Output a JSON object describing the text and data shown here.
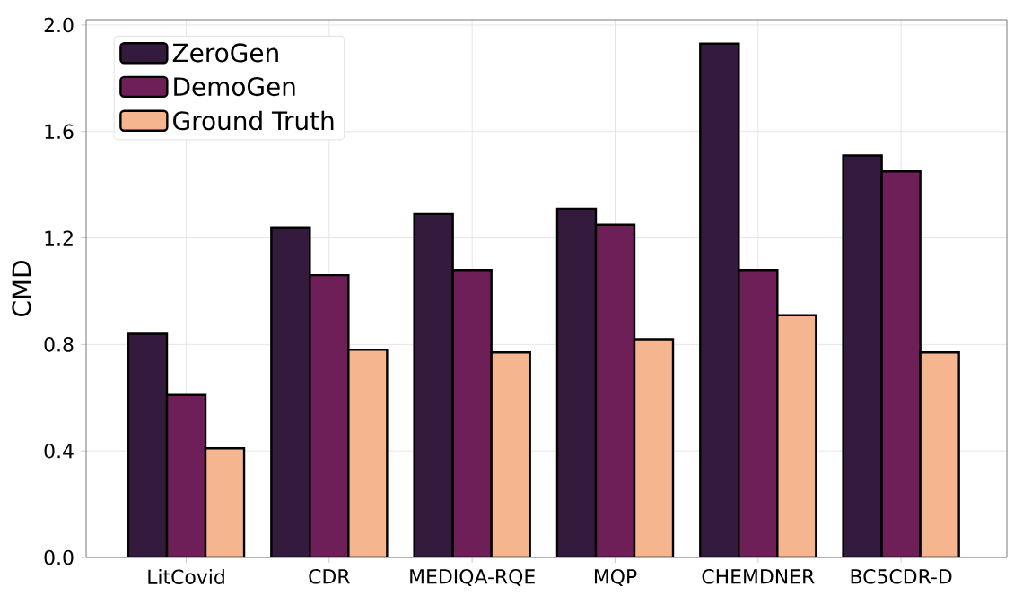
{
  "chart_data": {
    "type": "bar",
    "ylabel": "CMD",
    "categories": [
      "LitCovid",
      "CDR",
      "MEDIQA-RQE",
      "MQP",
      "CHEMDNER",
      "BC5CDR-D"
    ],
    "series": [
      {
        "name": "ZeroGen",
        "color": "#341a3c",
        "values": [
          0.84,
          1.24,
          1.29,
          1.31,
          1.93,
          1.51
        ]
      },
      {
        "name": "DemoGen",
        "color": "#6e1f57",
        "values": [
          0.61,
          1.06,
          1.08,
          1.25,
          1.08,
          1.45
        ]
      },
      {
        "name": "Ground Truth",
        "color": "#f5b58f",
        "values": [
          0.41,
          0.78,
          0.77,
          0.82,
          0.91,
          0.77
        ]
      }
    ],
    "ylim": [
      0,
      2.02
    ],
    "yticks": [
      {
        "value": 0,
        "label": "0.0"
      },
      {
        "value": 0.4,
        "label": "0.4"
      },
      {
        "value": 0.8,
        "label": "0.8"
      },
      {
        "value": 1.2,
        "label": "1.2"
      },
      {
        "value": 1.6,
        "label": "1.6"
      },
      {
        "value": 2.0,
        "label": "2.0"
      }
    ],
    "grid": true,
    "legend": "top left"
  }
}
